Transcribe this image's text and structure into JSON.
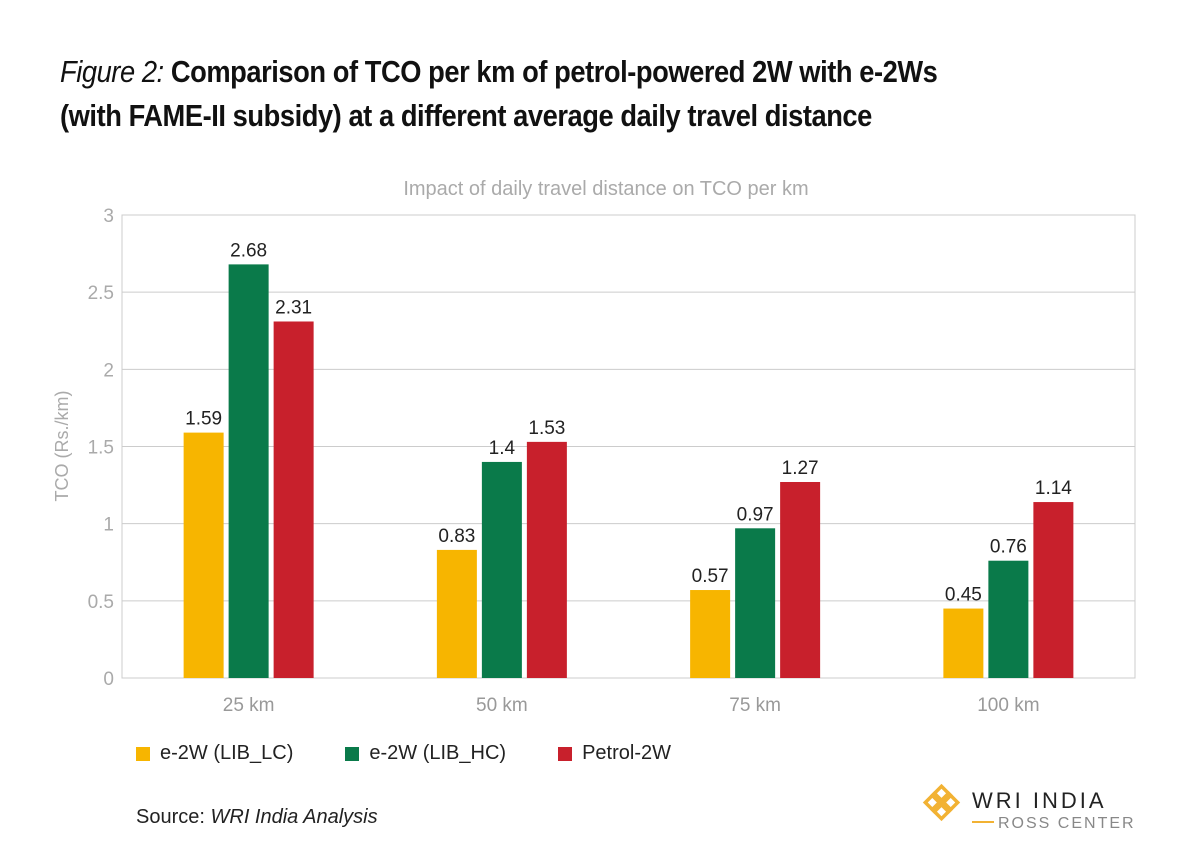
{
  "figure_label": "Figure 2:",
  "figure_title_line1": "Comparison of TCO per km of petrol-powered 2W with e-2Ws",
  "figure_title_line2": "(with FAME-II subsidy) at a different average daily travel distance",
  "source_label": "Source:",
  "source_value": "WRI India Analysis",
  "logo": {
    "line1": "WRI INDIA",
    "line2": "ROSS CENTER"
  },
  "chart_data": {
    "type": "bar",
    "title": "Impact of daily travel distance on TCO per km",
    "xlabel": "",
    "ylabel": "TCO (Rs./km)",
    "ylim": [
      0,
      3
    ],
    "yticks": [
      "0",
      "0.5",
      "1",
      "1.5",
      "2",
      "2.5",
      "3"
    ],
    "grid": true,
    "legend_position": "bottom",
    "categories": [
      "25 km",
      "50 km",
      "75 km",
      "100 km"
    ],
    "series": [
      {
        "name": "e-2W (LIB_LC)",
        "color": "#F7B500",
        "values": [
          1.59,
          0.83,
          0.57,
          0.45
        ]
      },
      {
        "name": "e-2W (LIB_HC)",
        "color": "#0A7A4A",
        "values": [
          2.68,
          1.4,
          0.97,
          0.76
        ]
      },
      {
        "name": "Petrol-2W",
        "color": "#C8202C",
        "values": [
          2.31,
          1.53,
          1.27,
          1.14
        ]
      }
    ]
  }
}
